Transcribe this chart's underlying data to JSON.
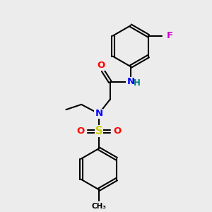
{
  "background_color": "#ececec",
  "atom_colors": {
    "N": "#0000ff",
    "O": "#ff0000",
    "S": "#cccc00",
    "F": "#cc00cc",
    "H": "#008080",
    "C": "#000000"
  },
  "bond_color": "#000000",
  "bond_width": 1.5,
  "font_size_atom": 9.5,
  "font_size_small": 8.5
}
